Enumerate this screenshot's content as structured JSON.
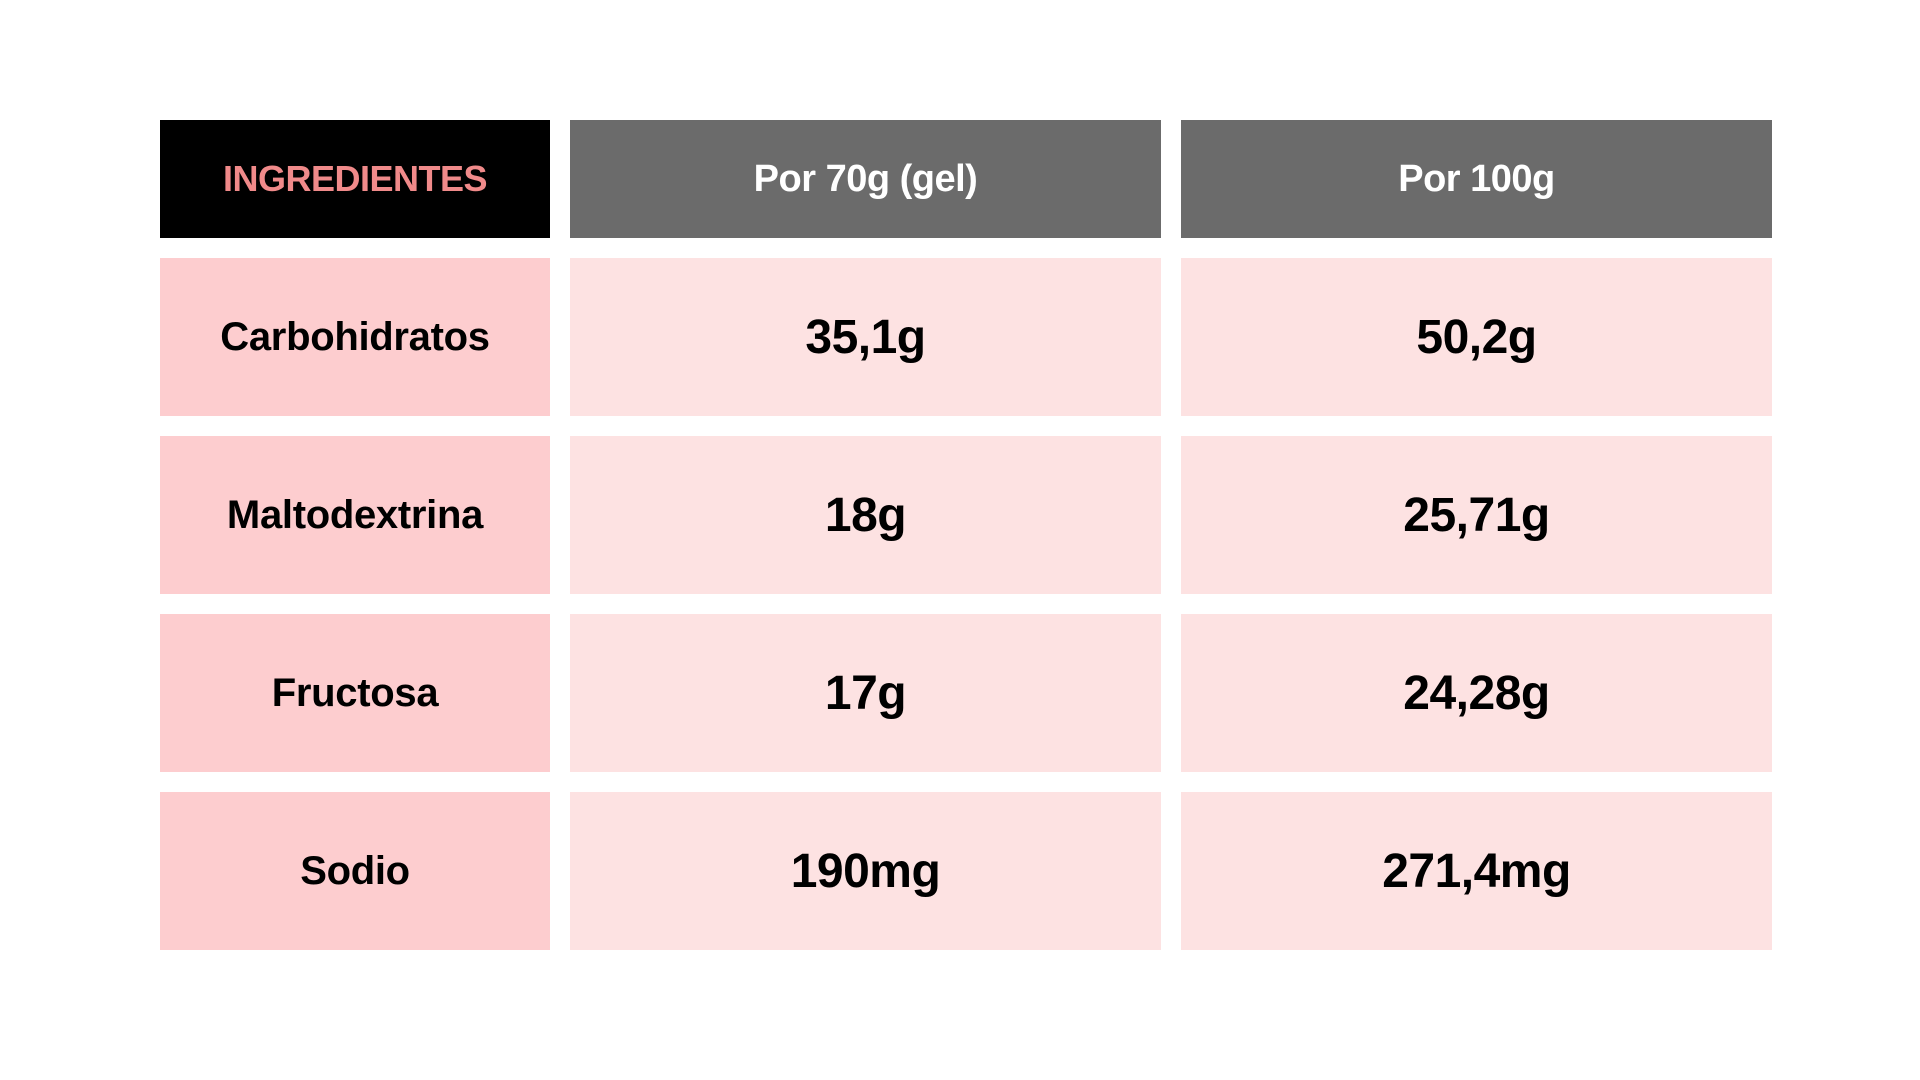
{
  "header": {
    "col1": "INGREDIENTES",
    "col2": "Por 70g (gel)",
    "col3": "Por 100g"
  },
  "rows": [
    {
      "label": "Carbohidratos",
      "per70": "35,1g",
      "per100": "50,2g"
    },
    {
      "label": "Maltodextrina",
      "per70": "18g",
      "per100": "25,71g"
    },
    {
      "label": "Fructosa",
      "per70": "17g",
      "per100": "24,28g"
    },
    {
      "label": "Sodio",
      "per70": "190mg",
      "per100": "271,4mg"
    }
  ],
  "colors": {
    "header_first_bg": "#000000",
    "header_first_text": "#f08a8a",
    "header_bg": "#6b6b6b",
    "label_bg": "#fdcdcf",
    "value_bg": "#fde2e2"
  }
}
